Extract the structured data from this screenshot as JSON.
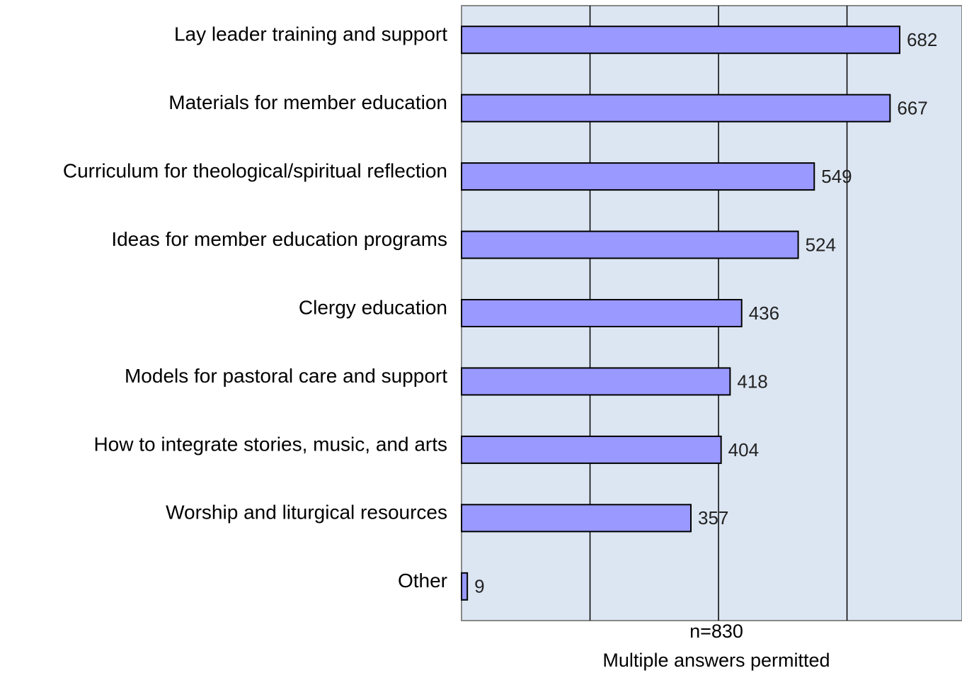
{
  "chart_data": {
    "type": "bar",
    "orientation": "horizontal",
    "categories": [
      "Lay leader training and support",
      "Materials for member education",
      "Curriculum for theological/spiritual reflection",
      "Ideas for member education programs",
      "Clergy education",
      "Models for pastoral care and support",
      "How to integrate stories, music, and arts",
      "Worship and liturgical resources",
      "Other"
    ],
    "values": [
      682,
      667,
      549,
      524,
      436,
      418,
      404,
      357,
      9
    ],
    "color": "#9999ff",
    "xlim": [
      0,
      779
    ],
    "xticks": [
      200,
      400,
      600
    ],
    "grid": true,
    "annotations": [
      "n=830",
      "Multiple answers permitted"
    ]
  }
}
